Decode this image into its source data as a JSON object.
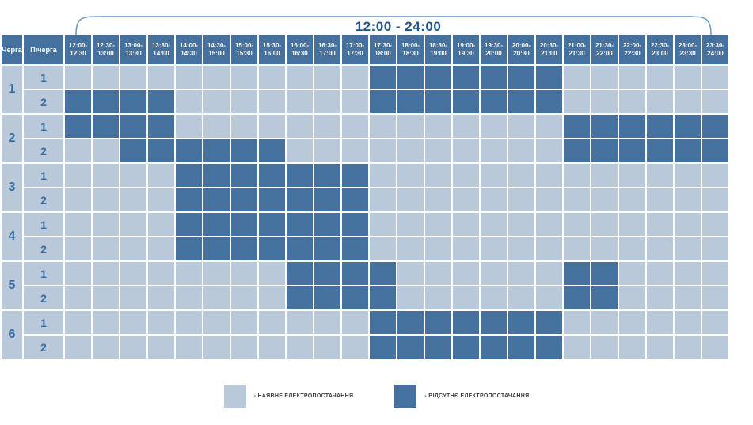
{
  "chart_data": {
    "type": "heatmap",
    "title": "12:00 - 24:00",
    "queue_label": "Черга",
    "subqueue_label": "Пічерга",
    "time_slots": [
      [
        "12:00-",
        "12:30"
      ],
      [
        "12:30-",
        "13:00"
      ],
      [
        "13:00-",
        "13:30"
      ],
      [
        "13:30-",
        "14:00"
      ],
      [
        "14:00-",
        "14:30"
      ],
      [
        "14:30-",
        "15:00"
      ],
      [
        "15:00-",
        "15:30"
      ],
      [
        "15:30-",
        "16:00"
      ],
      [
        "16:00-",
        "16:30"
      ],
      [
        "16:30-",
        "17:00"
      ],
      [
        "17:00-",
        "17:30"
      ],
      [
        "17:30-",
        "18:00"
      ],
      [
        "18:00-",
        "18:30"
      ],
      [
        "18:30-",
        "19:00"
      ],
      [
        "19:00-",
        "19:30"
      ],
      [
        "19:30-",
        "20:00"
      ],
      [
        "20:00-",
        "20:30"
      ],
      [
        "20:30-",
        "21:00"
      ],
      [
        "21:00-",
        "21:30"
      ],
      [
        "21:30-",
        "22:00"
      ],
      [
        "22:00-",
        "22:30"
      ],
      [
        "22:30-",
        "23:00"
      ],
      [
        "23:00-",
        "23:30"
      ],
      [
        "23:30-",
        "24:00"
      ]
    ],
    "queues": [
      {
        "queue": "1",
        "subqueues": [
          {
            "label": "1",
            "cells": [
              0,
              0,
              0,
              0,
              0,
              0,
              0,
              0,
              0,
              0,
              0,
              1,
              1,
              1,
              1,
              1,
              1,
              1,
              0,
              0,
              0,
              0,
              0,
              0
            ]
          },
          {
            "label": "2",
            "cells": [
              1,
              1,
              1,
              1,
              0,
              0,
              0,
              0,
              0,
              0,
              0,
              1,
              1,
              1,
              1,
              1,
              1,
              1,
              0,
              0,
              0,
              0,
              0,
              0
            ]
          }
        ]
      },
      {
        "queue": "2",
        "subqueues": [
          {
            "label": "1",
            "cells": [
              1,
              1,
              1,
              1,
              0,
              0,
              0,
              0,
              0,
              0,
              0,
              0,
              0,
              0,
              0,
              0,
              0,
              0,
              1,
              1,
              1,
              1,
              1,
              1
            ]
          },
          {
            "label": "2",
            "cells": [
              0,
              0,
              1,
              1,
              1,
              1,
              1,
              1,
              0,
              0,
              0,
              0,
              0,
              0,
              0,
              0,
              0,
              0,
              1,
              1,
              1,
              1,
              1,
              1
            ]
          }
        ]
      },
      {
        "queue": "3",
        "subqueues": [
          {
            "label": "1",
            "cells": [
              0,
              0,
              0,
              0,
              1,
              1,
              1,
              1,
              1,
              1,
              1,
              0,
              0,
              0,
              0,
              0,
              0,
              0,
              0,
              0,
              0,
              0,
              0,
              0
            ]
          },
          {
            "label": "2",
            "cells": [
              0,
              0,
              0,
              0,
              1,
              1,
              1,
              1,
              1,
              1,
              1,
              0,
              0,
              0,
              0,
              0,
              0,
              0,
              0,
              0,
              0,
              0,
              0,
              0
            ]
          }
        ]
      },
      {
        "queue": "4",
        "subqueues": [
          {
            "label": "1",
            "cells": [
              0,
              0,
              0,
              0,
              1,
              1,
              1,
              1,
              1,
              1,
              1,
              0,
              0,
              0,
              0,
              0,
              0,
              0,
              0,
              0,
              0,
              0,
              0,
              0
            ]
          },
          {
            "label": "2",
            "cells": [
              0,
              0,
              0,
              0,
              1,
              1,
              1,
              1,
              1,
              1,
              1,
              0,
              0,
              0,
              0,
              0,
              0,
              0,
              0,
              0,
              0,
              0,
              0,
              0
            ]
          }
        ]
      },
      {
        "queue": "5",
        "subqueues": [
          {
            "label": "1",
            "cells": [
              0,
              0,
              0,
              0,
              0,
              0,
              0,
              0,
              1,
              1,
              1,
              1,
              0,
              0,
              0,
              0,
              0,
              0,
              1,
              1,
              0,
              0,
              0,
              0
            ]
          },
          {
            "label": "2",
            "cells": [
              0,
              0,
              0,
              0,
              0,
              0,
              0,
              0,
              1,
              1,
              1,
              1,
              0,
              0,
              0,
              0,
              0,
              0,
              1,
              1,
              0,
              0,
              0,
              0
            ]
          }
        ]
      },
      {
        "queue": "6",
        "subqueues": [
          {
            "label": "1",
            "cells": [
              0,
              0,
              0,
              0,
              0,
              0,
              0,
              0,
              0,
              0,
              0,
              1,
              1,
              1,
              1,
              1,
              1,
              1,
              0,
              0,
              0,
              0,
              0,
              0
            ]
          },
          {
            "label": "2",
            "cells": [
              0,
              0,
              0,
              0,
              0,
              0,
              0,
              0,
              0,
              0,
              0,
              1,
              1,
              1,
              1,
              1,
              1,
              1,
              0,
              0,
              0,
              0,
              0,
              0
            ]
          }
        ]
      }
    ],
    "legend": [
      {
        "key": "power_on",
        "label": "- НАЯВНЕ ЕЛЕКТРОПОСТАЧАННЯ"
      },
      {
        "key": "power_off",
        "label": "- ВІДСУТНЄ ЕЛЕКТРОПОСТАЧАННЯ"
      }
    ],
    "colors": {
      "power_on": "#B9C9D9",
      "power_off": "#44719E",
      "header_bg": "#44719E",
      "header_text": "#FFFFFF",
      "label_bg": "#B9C9D9",
      "label_text": "#3A6B9E",
      "title_text": "#1F5496",
      "bracket": "#6A96CC",
      "legend_text": "#404040"
    }
  }
}
